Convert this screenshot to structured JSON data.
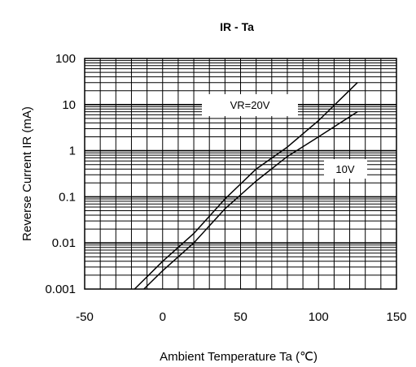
{
  "chart_data": {
    "type": "line",
    "title": "IR - Ta",
    "xlabel": "Ambient Temperature Ta (℃)",
    "ylabel": "Reverse Current IR (mA)",
    "xscale": "linear",
    "yscale": "log",
    "xlim": [
      -50,
      150
    ],
    "ylim": [
      0.001,
      100
    ],
    "x_ticks": [
      "-50",
      "0",
      "50",
      "100",
      "150"
    ],
    "y_ticks": [
      "0.001",
      "0.01",
      "0.1",
      "1",
      "10",
      "100"
    ],
    "grid": true,
    "series": [
      {
        "name": "VR=20V",
        "x": [
          -18,
          0,
          20,
          40,
          60,
          80,
          100,
          125
        ],
        "y": [
          0.001,
          0.004,
          0.016,
          0.09,
          0.4,
          1.2,
          4.5,
          30
        ]
      },
      {
        "name": "10V",
        "x": [
          -12,
          0,
          20,
          40,
          60,
          80,
          100,
          125
        ],
        "y": [
          0.001,
          0.0025,
          0.01,
          0.055,
          0.22,
          0.75,
          2.0,
          7.0
        ]
      }
    ]
  }
}
